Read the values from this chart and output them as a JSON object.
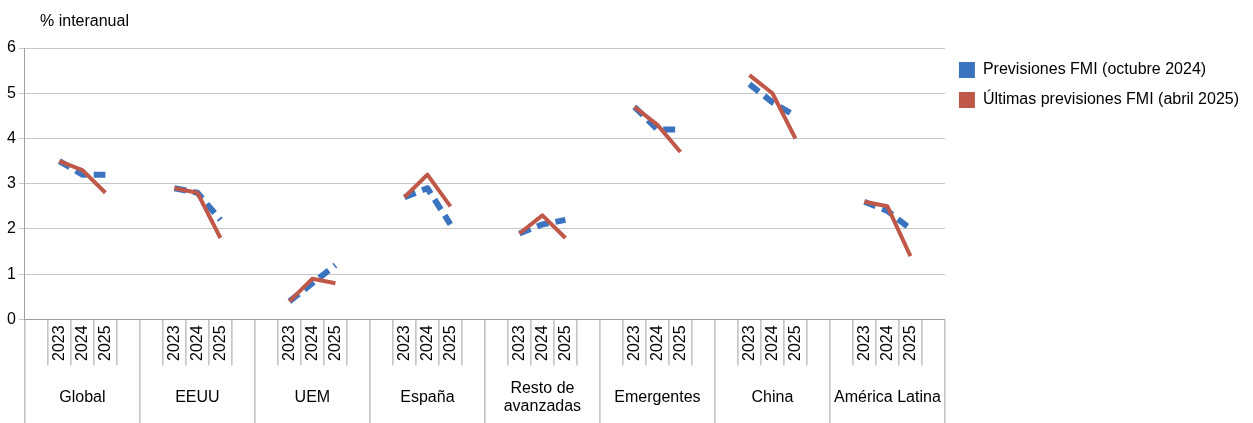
{
  "chart_data": {
    "type": "line",
    "ylabel": "% interanual",
    "categories": [
      null,
      "2023",
      "2024",
      "2025",
      null,
      null,
      "2023",
      "2024",
      "2025",
      null,
      null,
      "2023",
      "2024",
      "2025",
      null,
      null,
      "2023",
      "2024",
      "2025",
      null,
      null,
      "2023",
      "2024",
      "2025",
      null,
      null,
      "2023",
      "2024",
      "2025",
      null,
      null,
      "2023",
      "2024",
      "2025",
      null,
      null,
      "2023",
      "2024",
      "2025",
      null
    ],
    "series": [
      {
        "name": "Previsiones FMI (octubre 2024)",
        "color": "#3a73c0",
        "line_style": "dashed",
        "values": [
          null,
          3.5,
          3.2,
          3.2,
          null,
          null,
          2.9,
          2.8,
          2.2,
          null,
          null,
          0.4,
          0.8,
          1.2,
          null,
          null,
          2.7,
          2.9,
          2.1,
          null,
          null,
          1.9,
          2.1,
          2.2,
          null,
          null,
          4.7,
          4.2,
          4.2,
          null,
          null,
          5.2,
          4.8,
          4.5,
          null,
          null,
          2.6,
          2.4,
          2.0,
          null
        ]
      },
      {
        "name": "Últimas previsiones FMI (abril 2025)",
        "color": "#c0584a",
        "line_style": "solid",
        "values": [
          null,
          3.5,
          3.3,
          2.8,
          null,
          null,
          2.9,
          2.8,
          1.8,
          null,
          null,
          0.4,
          0.9,
          0.8,
          null,
          null,
          2.7,
          3.2,
          2.5,
          null,
          null,
          1.9,
          2.3,
          1.8,
          null,
          null,
          4.7,
          4.3,
          3.7,
          null,
          null,
          5.4,
          5.0,
          4.0,
          null,
          null,
          2.6,
          2.5,
          1.4,
          null
        ]
      }
    ],
    "annotations": [
      "Global",
      "EEUU",
      "UEM",
      "España",
      "Resto de avanzadas",
      "Emergentes",
      "China",
      "América Latina"
    ],
    "ylim": [
      0,
      6
    ],
    "yticks": [
      0,
      1,
      2,
      3,
      4,
      5,
      6
    ],
    "grid": "y",
    "legend": "top right",
    "marker": "none"
  }
}
